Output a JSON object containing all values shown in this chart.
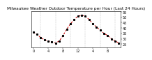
{
  "title": "Milwaukee Weather Outdoor Temperature per Hour (Last 24 Hours)",
  "x_values": [
    0,
    1,
    2,
    3,
    4,
    5,
    6,
    7,
    8,
    9,
    10,
    11,
    12,
    13,
    14,
    15,
    16,
    17,
    18,
    19,
    20,
    21,
    22,
    23
  ],
  "y_values": [
    36,
    34,
    31,
    29,
    28,
    27,
    26,
    28,
    33,
    39,
    44,
    48,
    51,
    52,
    51,
    48,
    44,
    41,
    38,
    35,
    33,
    30,
    28,
    26
  ],
  "x_tick_positions": [
    0,
    4,
    8,
    12,
    16,
    20
  ],
  "x_tick_labels": [
    "0",
    "4",
    "8",
    "12",
    "4",
    "8"
  ],
  "y_tick_positions": [
    25,
    30,
    35,
    40,
    45,
    50,
    55
  ],
  "y_tick_labels": [
    "25",
    "30",
    "35",
    "40",
    "45",
    "50",
    "55"
  ],
  "ylim": [
    22,
    56
  ],
  "xlim": [
    -0.5,
    23.5
  ],
  "line_color": "#cc0000",
  "marker_color": "#000000",
  "grid_color": "#999999",
  "bg_color": "#ffffff",
  "plot_bg_color": "#ffffff",
  "title_fontsize": 4.2,
  "tick_fontsize": 3.5,
  "vgrid_positions": [
    2,
    6,
    10,
    14,
    18,
    22
  ],
  "line_width": 0.7,
  "marker_size": 1.2
}
